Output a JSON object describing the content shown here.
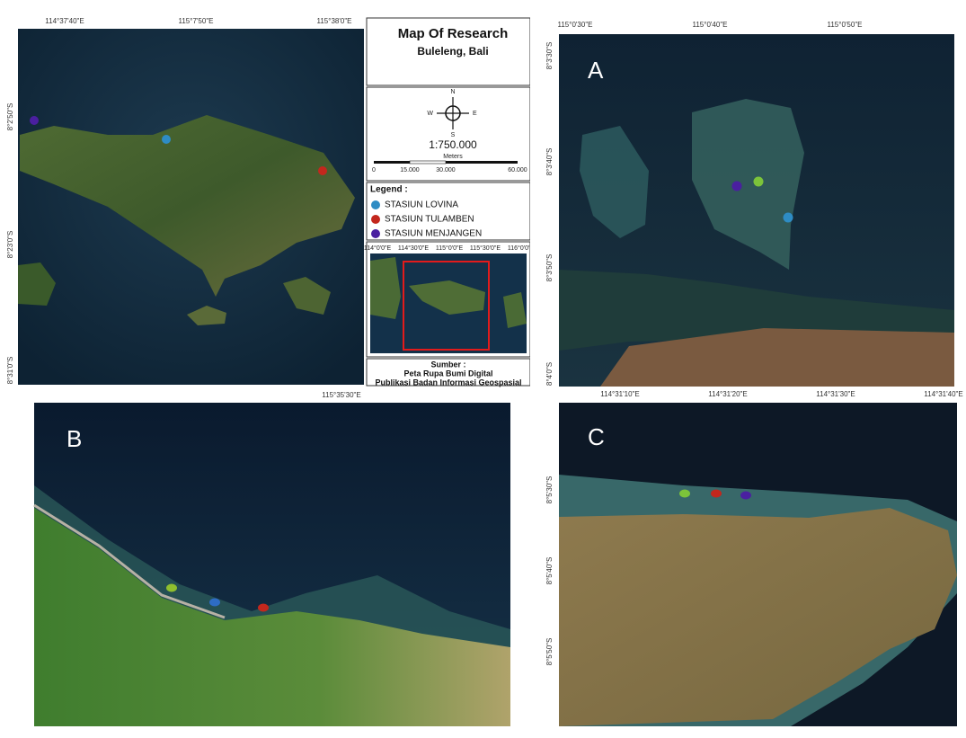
{
  "main_map": {
    "top_coords": [
      "114°37'40\"E",
      "115°7'50\"E",
      "115°38'0\"E"
    ],
    "left_coords": [
      "8°2'50\"S",
      "8°23'0\"S",
      "8°31'0\"S"
    ]
  },
  "sidebar": {
    "title": "Map Of Research",
    "subtitle": "Buleleng, Bali",
    "compass": {
      "n": "N",
      "s": "S",
      "e": "E",
      "w": "W"
    },
    "scale": "1:750.000",
    "scale_unit": "Meters",
    "scale_ticks": [
      "0",
      "15.000",
      "30.000",
      "60.000"
    ],
    "legend": {
      "title": "Legend :",
      "items": [
        {
          "label": "STASIUN LOVINA",
          "color": "#2e8cc4"
        },
        {
          "label": "STASIUN TULAMBEN",
          "color": "#c3271d"
        },
        {
          "label": "STASIUN MENJANGEN",
          "color": "#4a1fa0"
        }
      ]
    },
    "inset_coords": [
      "114°0'0\"E",
      "114°30'0\"E",
      "115°0'0\"E",
      "115°30'0\"E",
      "116°0'0\"E"
    ],
    "source": {
      "title": "Sumber :",
      "lines": [
        "Peta Rupa Bumi Digital",
        "Publikasi Badan Informasi Geospasial"
      ]
    }
  },
  "panels": {
    "a": {
      "letter": "A",
      "top_coords": [
        "115°0'30\"E",
        "115°0'40\"E",
        "115°0'50\"E"
      ],
      "left_coords": [
        "8°3'30\"S",
        "8°3'40\"S",
        "8°3'50\"S",
        "8°4'0\"S"
      ]
    },
    "b": {
      "letter": "B",
      "top_coords": [
        "115°35'30\"E"
      ]
    },
    "c": {
      "letter": "C",
      "top_coords": [
        "114°31'10\"E",
        "114°31'20\"E",
        "114°31'30\"E",
        "114°31'40\"E"
      ],
      "left_coords": [
        "8°5'30\"S",
        "8°5'40\"S",
        "8°5'50\"S"
      ]
    }
  }
}
